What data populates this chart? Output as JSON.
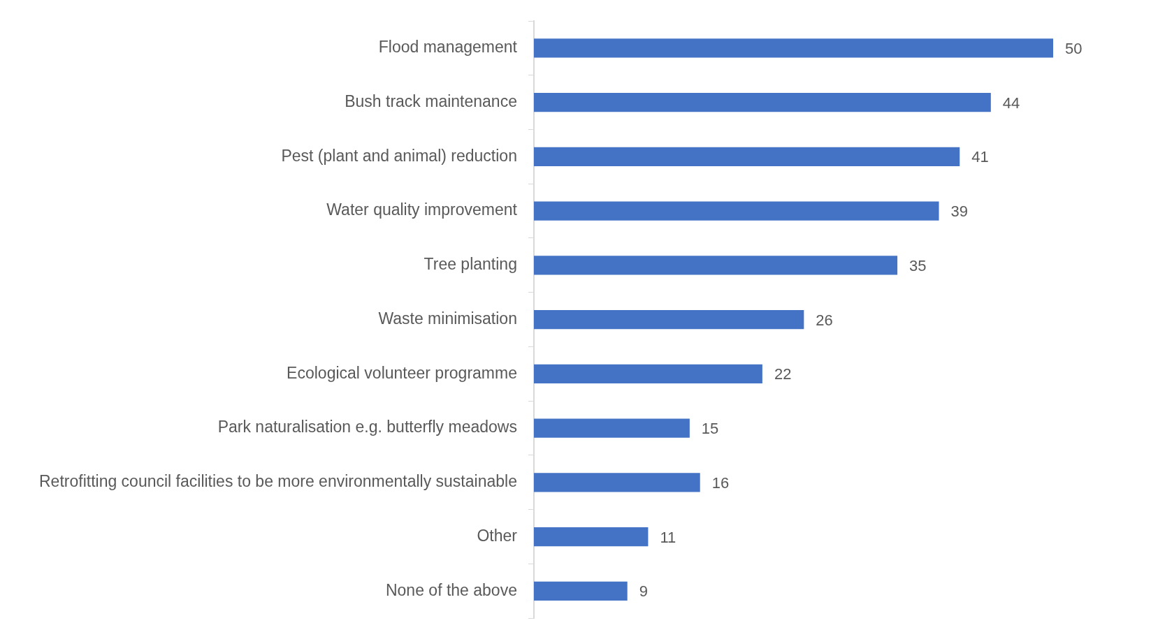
{
  "chart_data": {
    "type": "bar",
    "orientation": "horizontal",
    "categories": [
      "Flood management",
      "Bush track maintenance",
      "Pest (plant and animal) reduction",
      "Water quality improvement",
      "Tree planting",
      "Waste minimisation",
      "Ecological volunteer programme",
      "Park naturalisation e.g. butterfly meadows",
      "Retrofitting council facilities to be more environmentally sustainable",
      "Other",
      "None of the above"
    ],
    "values": [
      50,
      44,
      41,
      39,
      35,
      26,
      22,
      15,
      16,
      11,
      9
    ],
    "color": "#4472c4",
    "data_labels": true,
    "legend": false
  }
}
